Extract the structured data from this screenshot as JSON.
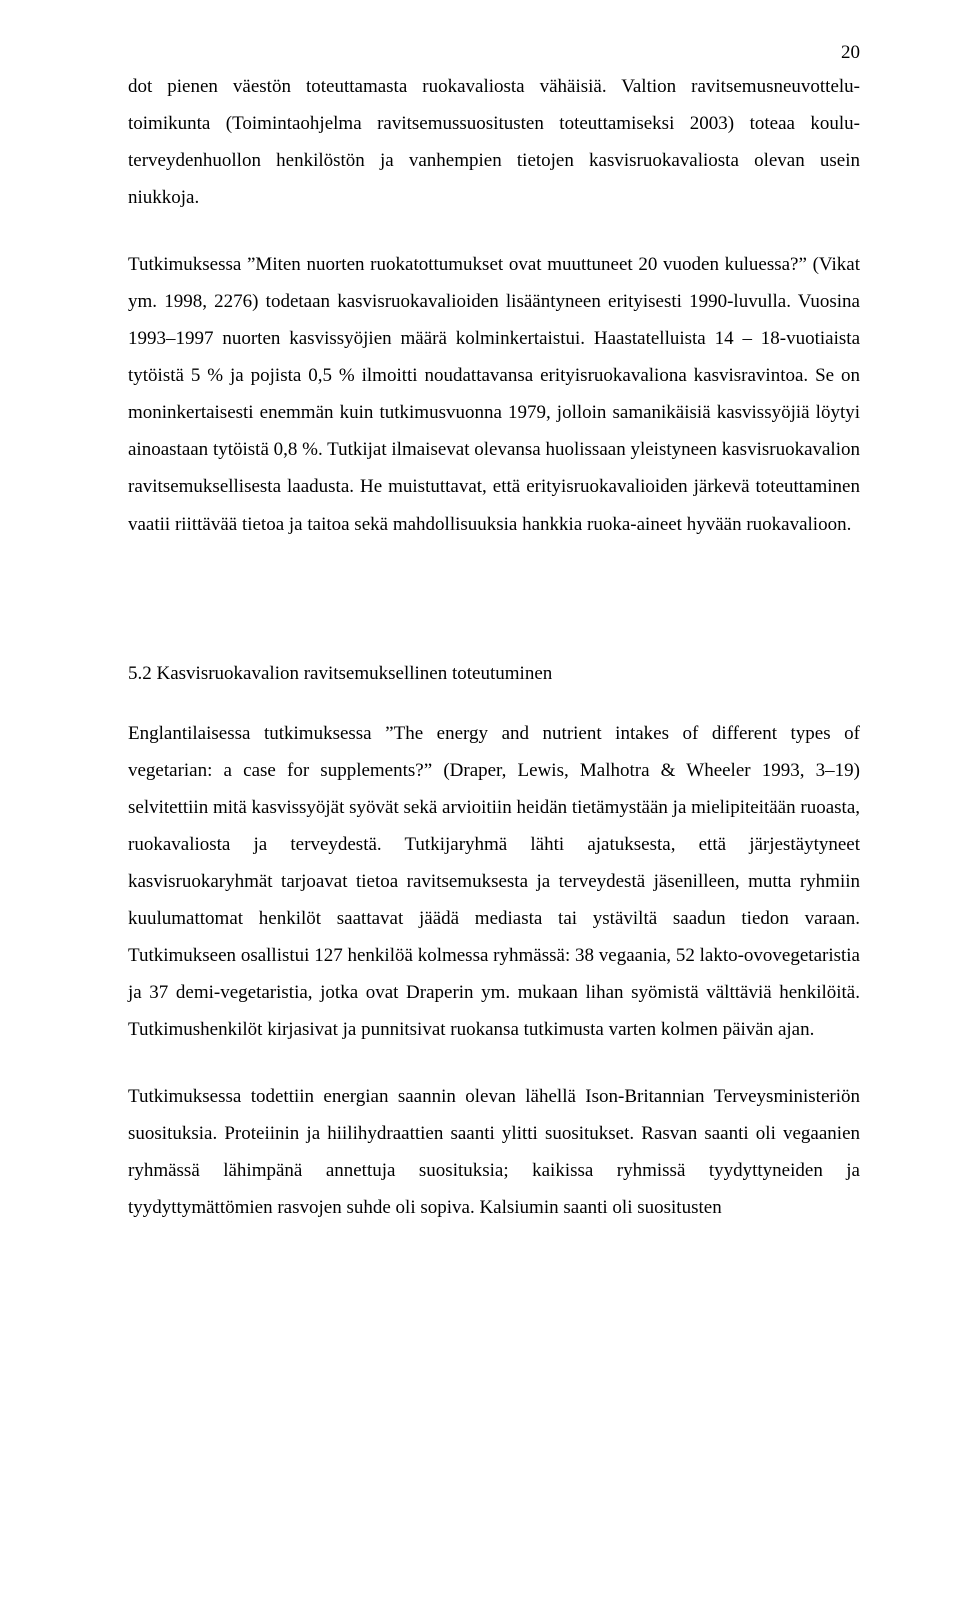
{
  "page_number": "20",
  "paragraphs": {
    "p1": "dot pienen väestön toteuttamasta ruokavaliosta vähäisiä. Valtion ravitsemusneuvottelu­toimikunta (Toimintaohjelma ravitsemussuositusten toteuttamiseksi 2003) toteaa koulu­terveydenhuollon henkilöstön ja vanhempien tietojen kasvisruokavaliosta olevan usein niukkoja.",
    "p2": "Tutkimuksessa ”Miten nuorten ruokatottumukset ovat muuttuneet 20 vuoden kuluessa?” (Vikat ym. 1998, 2276) todetaan kasvisruokavalioiden lisääntyneen erityisesti 1990-luvulla. Vuosina 1993–1997 nuorten kasvissyöjien määrä kolminkertaistui. Haastatel­luista 14 – 18-vuotiaista tytöistä 5 % ja pojista 0,5 % ilmoitti noudattavansa erityisruo­kavaliona kasvisravintoa. Se on moninkertaisesti enemmän kuin tutkimusvuonna 1979, jolloin samanikäisiä kasvissyöjiä löytyi ainoastaan tytöistä 0,8 %. Tutkijat ilmaisevat olevansa huolissaan yleistyneen kasvisruokavalion ravitsemuksellisesta laadusta. He muistuttavat, että erityisruokavalioiden järkevä toteuttaminen vaatii riittävää tietoa ja taitoa sekä mahdollisuuksia hankkia ruoka-aineet hyvään ruokavalioon.",
    "p3": "Englantilaisessa tutkimuksessa ”The energy and nutrient intakes of different types of vegetarian: a case for supplements?” (Draper, Lewis, Malhotra & Wheeler 1993, 3–19) selvitettiin mitä kasvissyöjät syövät sekä arvioitiin heidän tietämystään ja mielipiteitään ruoasta, ruokavaliosta ja terveydestä. Tutkijaryhmä lähti ajatuksesta, että järjestäytyneet kasvisruokaryhmät tarjoavat tietoa ravitsemuksesta ja terveydestä jäsenilleen, mutta ryhmiin kuulumattomat henkilöt saattavat jäädä mediasta tai ystäviltä saadun tiedon varaan. Tutkimukseen osallistui 127 henkilöä kolmessa ryhmässä: 38 vegaania, 52 lak­to-ovovegetaristia ja 37 demi-vegetaristia, jotka ovat Draperin ym. mukaan lihan syö­mistä välttäviä henkilöitä. Tutkimushenkilöt kirjasivat ja punnitsivat ruokansa tutkimus­ta varten kolmen päivän ajan.",
    "p4": "Tutkimuksessa todettiin energian saannin olevan lähellä Ison-Britannian Terveysminis­teriön suosituksia. Proteiinin ja hiilihydraattien saanti ylitti suositukset. Rasvan saanti oli vegaanien ryhmässä lähimpänä annettuja suosituksia; kaikissa ryhmissä tyydyttynei­den ja tyydyttymättömien rasvojen suhde oli sopiva. Kalsiumin saanti oli suositusten"
  },
  "section_heading": "5.2 Kasvisruokavalion ravitsemuksellinen toteutuminen"
}
